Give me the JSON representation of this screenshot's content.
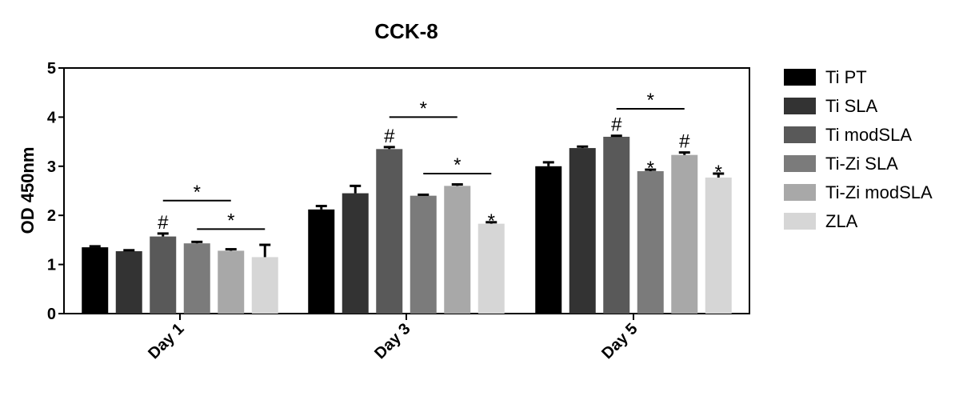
{
  "chart_data": {
    "type": "bar",
    "title": "CCK-8",
    "xlabel": "",
    "ylabel": "OD 450nm",
    "ylim": [
      0,
      5
    ],
    "yticks": [
      0,
      1,
      2,
      3,
      4,
      5
    ],
    "grid": false,
    "legend_position": "right",
    "categories": [
      "Day 1",
      "Day 3",
      "Day 5"
    ],
    "series": [
      {
        "name": "Ti PT",
        "color": "#000000",
        "values": [
          1.35,
          2.12,
          3.0
        ],
        "errors": [
          0.02,
          0.07,
          0.08
        ]
      },
      {
        "name": "Ti SLA",
        "color": "#333333",
        "values": [
          1.27,
          2.45,
          3.37
        ],
        "errors": [
          0.02,
          0.15,
          0.03
        ]
      },
      {
        "name": "Ti modSLA",
        "color": "#595959",
        "values": [
          1.57,
          3.35,
          3.6
        ],
        "errors": [
          0.06,
          0.04,
          0.02
        ]
      },
      {
        "name": "Ti-Zi SLA",
        "color": "#7b7b7b",
        "values": [
          1.43,
          2.4,
          2.9
        ],
        "errors": [
          0.03,
          0.02,
          0.03
        ]
      },
      {
        "name": "Ti-Zi modSLA",
        "color": "#a8a8a8",
        "values": [
          1.28,
          2.6,
          3.23
        ],
        "errors": [
          0.03,
          0.03,
          0.05
        ]
      },
      {
        "name": "ZLA",
        "color": "#d6d6d6",
        "values": [
          1.15,
          1.83,
          2.77
        ],
        "errors": [
          0.25,
          0.03,
          0.08
        ]
      }
    ],
    "annotations": {
      "hash": [
        {
          "category": 0,
          "series": 2,
          "text": "#"
        },
        {
          "category": 1,
          "series": 2,
          "text": "#"
        },
        {
          "category": 2,
          "series": 2,
          "text": "#"
        },
        {
          "category": 2,
          "series": 4,
          "text": "#"
        }
      ],
      "star": [
        {
          "category": 1,
          "series": 5,
          "text": "*"
        },
        {
          "category": 2,
          "series": 3,
          "text": "*"
        },
        {
          "category": 2,
          "series": 5,
          "text": "*"
        }
      ],
      "brackets": [
        {
          "category": 0,
          "from_series": 2,
          "to_series": 4,
          "y": 2.3,
          "text": "*"
        },
        {
          "category": 0,
          "from_series": 3,
          "to_series": 5,
          "y": 1.72,
          "text": "*"
        },
        {
          "category": 1,
          "from_series": 2,
          "to_series": 4,
          "y": 4.0,
          "text": "*"
        },
        {
          "category": 1,
          "from_series": 3,
          "to_series": 5,
          "y": 2.85,
          "text": "*"
        },
        {
          "category": 2,
          "from_series": 2,
          "to_series": 4,
          "y": 4.17,
          "text": "*"
        }
      ]
    }
  }
}
